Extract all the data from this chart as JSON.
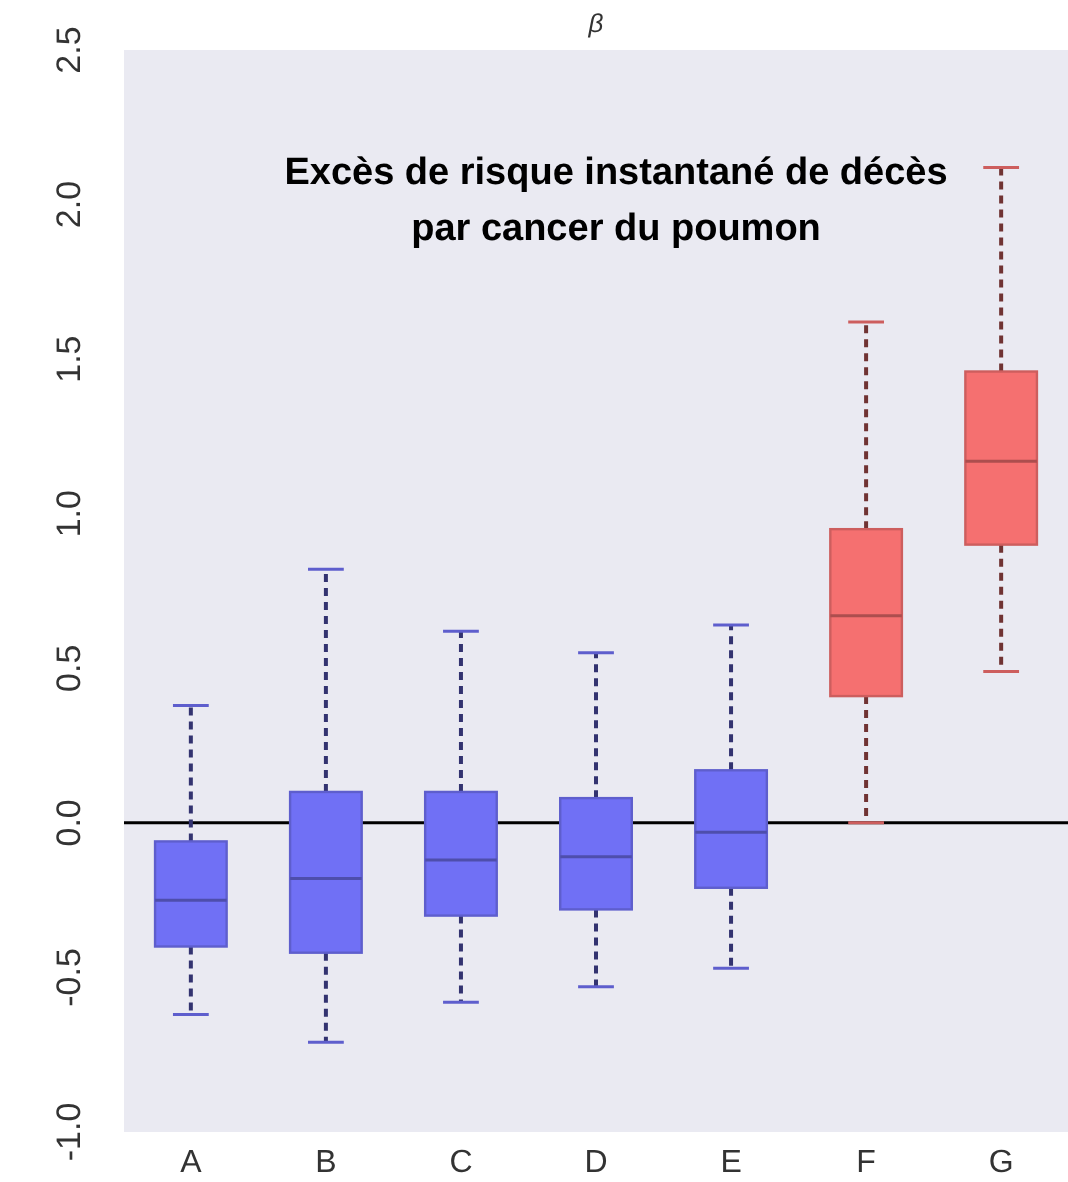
{
  "chart_data": {
    "type": "box",
    "title": "β",
    "subtitle": "Excès de risque instantané de décès par cancer du poumon",
    "categories": [
      "A",
      "B",
      "C",
      "D",
      "E",
      "F",
      "G"
    ],
    "boxes": [
      {
        "low": -0.62,
        "q1": -0.4,
        "median": -0.25,
        "q3": -0.06,
        "high": 0.38
      },
      {
        "low": -0.71,
        "q1": -0.42,
        "median": -0.18,
        "q3": 0.1,
        "high": 0.82
      },
      {
        "low": -0.58,
        "q1": -0.3,
        "median": -0.12,
        "q3": 0.1,
        "high": 0.62
      },
      {
        "low": -0.53,
        "q1": -0.28,
        "median": -0.11,
        "q3": 0.08,
        "high": 0.55
      },
      {
        "low": -0.47,
        "q1": -0.21,
        "median": -0.03,
        "q3": 0.17,
        "high": 0.64
      },
      {
        "low": 0.0,
        "q1": 0.41,
        "median": 0.67,
        "q3": 0.95,
        "high": 1.62
      },
      {
        "low": 0.49,
        "q1": 0.9,
        "median": 1.17,
        "q3": 1.46,
        "high": 2.12
      }
    ],
    "colors": [
      "#7070f5",
      "#7070f5",
      "#7070f5",
      "#7070f5",
      "#7070f5",
      "#f57070",
      "#f57070"
    ],
    "ylim": [
      -1.0,
      2.5
    ],
    "yticks": [
      {
        "value": -1.0,
        "label": "-1.0"
      },
      {
        "value": -0.5,
        "label": "-0.5"
      },
      {
        "value": 0.0,
        "label": "0.0"
      },
      {
        "value": 0.5,
        "label": "0.5"
      },
      {
        "value": 1.0,
        "label": "1.0"
      },
      {
        "value": 1.5,
        "label": "1.5"
      },
      {
        "value": 2.0,
        "label": "2.0"
      },
      {
        "value": 2.5,
        "label": "2.5"
      }
    ],
    "ref_lines": [
      {
        "axis": "y",
        "value": 0,
        "color": "#000000"
      }
    ],
    "line_style": "dashed",
    "grid": false
  }
}
